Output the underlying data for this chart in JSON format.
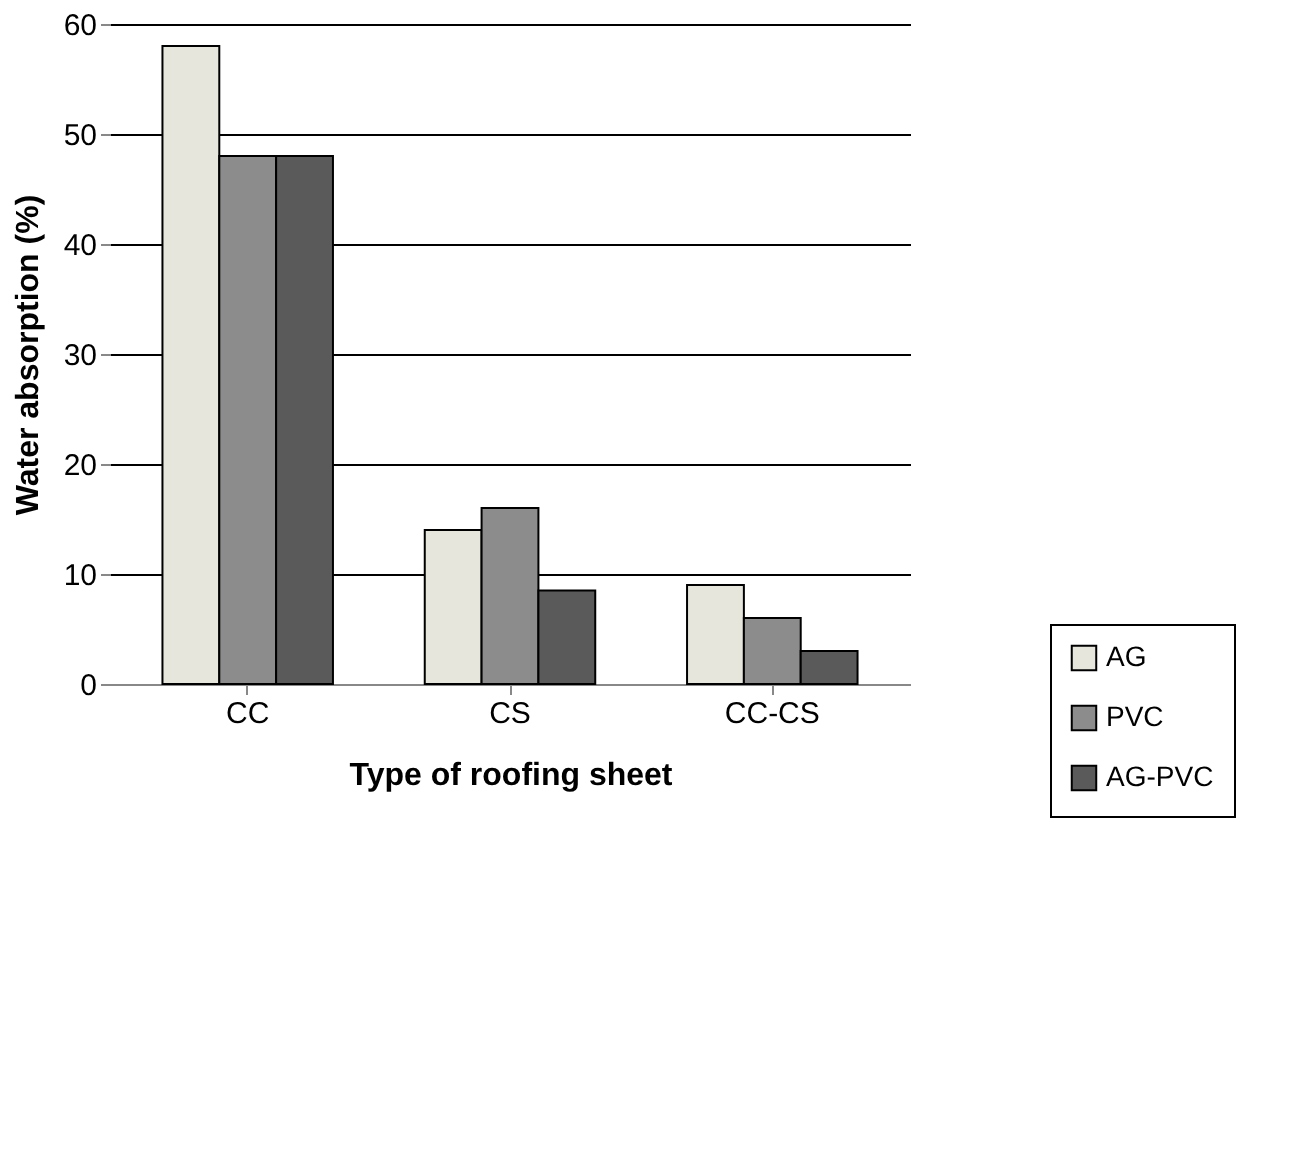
{
  "chart_data": {
    "type": "bar",
    "xlabel": "Type of roofing sheet",
    "ylabel": "Water absorption (%)",
    "categories": [
      "CC",
      "CS",
      "CC-CS"
    ],
    "series": [
      {
        "name": "AG",
        "color": "#e6e6dc",
        "values": [
          58,
          14,
          9
        ]
      },
      {
        "name": "PVC",
        "color": "#8c8c8c",
        "values": [
          48,
          16,
          6
        ]
      },
      {
        "name": "AG-PVC",
        "color": "#5a5a5a",
        "values": [
          48,
          8.5,
          3
        ]
      }
    ],
    "ylim": [
      0,
      60
    ],
    "yticks": [
      0,
      10,
      20,
      30,
      40,
      50,
      60
    ],
    "grid": "y",
    "legend": "bottom right"
  }
}
